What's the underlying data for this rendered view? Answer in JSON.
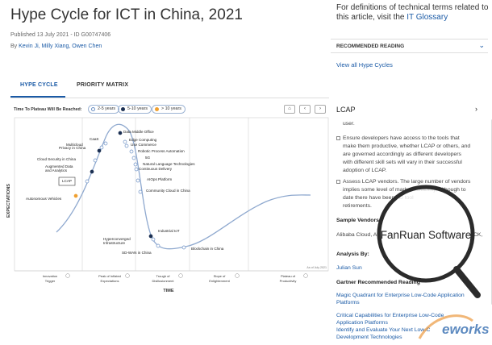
{
  "header": {
    "title": "Hype Cycle for ICT in China, 2021",
    "published": "Published 13 July 2021 - ID G00747406",
    "by_label": "By",
    "authors": "Kevin Ji, Milly Xiang, Owen Chen"
  },
  "tabs": [
    {
      "label": "HYPE CYCLE"
    },
    {
      "label": "PRIORITY MATRIX"
    }
  ],
  "legend": {
    "label": "Time To Plateau Will Be Reached:",
    "items": [
      {
        "label": "2-5 years",
        "color": "#ffffff",
        "border": "#6a8fc4"
      },
      {
        "label": "5-10 years",
        "color": "#1b2f52",
        "border": "#1b2f52"
      },
      {
        "label": "> 10 years",
        "color": "#f0a030",
        "border": "#f0a030"
      }
    ]
  },
  "controls": {
    "home": "⌂",
    "prev": "‹",
    "next": "›"
  },
  "chart": {
    "ylabel": "EXPECTATIONS",
    "xlabel": "TIME",
    "asof": "As of July 2021",
    "phases": [
      "Innovation Trigger",
      "Peak of Inflated Expectations",
      "Trough of Disillusionment",
      "Slope of Enlightenment",
      "Plateau of Productivity"
    ],
    "selected": "LCAP",
    "technologies": [
      {
        "name": "Data Middle Office",
        "plateau": "5-10 years"
      },
      {
        "name": "Edge Computing",
        "plateau": "2-5 years"
      },
      {
        "name": "Low-Code Application Platforms",
        "plateau": "2-5 years"
      },
      {
        "name": "Robotic Process Automation",
        "plateau": "2-5 years"
      },
      {
        "name": "5G",
        "plateau": "2-5 years"
      },
      {
        "name": "Natural Language Technologies",
        "plateau": "2-5 years"
      },
      {
        "name": "Continuous Delivery",
        "plateau": "2-5 years"
      },
      {
        "name": "AIOps Platform",
        "plateau": "2-5 years"
      },
      {
        "name": "Community Cloud in China",
        "plateau": "2-5 years"
      },
      {
        "name": "Industrial IoT",
        "plateau": "5-10 years"
      },
      {
        "name": "Hyperconverged Infrastructure",
        "plateau": "2-5 years"
      },
      {
        "name": "SD-WAN in China",
        "plateau": "2-5 years"
      },
      {
        "name": "Blockchain in China",
        "plateau": "2-5 years"
      },
      {
        "name": "CaaS",
        "plateau": "2-5 years"
      },
      {
        "name": "Multicloud",
        "plateau": "2-5 years"
      },
      {
        "name": "Privacy in China",
        "plateau": "5-10 years"
      },
      {
        "name": "Cloud Security in China",
        "plateau": "2-5 years"
      },
      {
        "name": "Augmented Data and Analytics",
        "plateau": "5-10 years"
      },
      {
        "name": "LCAP",
        "plateau": "2-5 years"
      },
      {
        "name": "Autonomous Vehicles",
        "plateau": "> 10 years"
      }
    ]
  },
  "sidebar": {
    "glossary_text": "For definitions of technical terms related to this article, visit the",
    "glossary_link": "IT Glossary",
    "recommended": "RECOMMENDED READING",
    "view_all": "View all Hype Cycles"
  },
  "panel": {
    "title": "LCAP",
    "close": "›",
    "lines": [
      {
        "text": "user.",
        "type": "text"
      },
      {
        "text": "Ensure developers have access to the tools that",
        "type": "bullet"
      },
      {
        "text": "make them productive, whether LCAP or others, and",
        "type": "text"
      },
      {
        "text": "are governed accordingly as different developers",
        "type": "text"
      },
      {
        "text": "with different skill sets will vary in their successful",
        "type": "text"
      },
      {
        "text": "adoption of LCAP.",
        "type": "text"
      },
      {
        "text": "Assess LCAP vendors. The large number of vendors",
        "type": "bullet"
      },
      {
        "text": "implies some level of market instability, although to",
        "type": "text"
      },
      {
        "text": "date there have been f              D tool",
        "type": "text"
      },
      {
        "text": "retirements.",
        "type": "text"
      }
    ],
    "sample_vendors_label": "Sample Vendors",
    "sample_vendors": "Alibaba Cloud, A",
    "sample_vendors_tail": "CK,",
    "analysis_label": "Analysis By:",
    "analyst": "Julian Sun",
    "gartner_label": "Gartner Recommended Reading",
    "links": [
      "Magic Quadrant for Enterprise Low-Code Application",
      "Platforms",
      "Critical Capabilities for Enterprise Low-Code",
      "Application Platforms",
      "Identify and Evaluate Your Next Low-C",
      "Development Technologies"
    ]
  },
  "watermarks": {
    "magnifier": "FanRuan Software",
    "logo": "eworks"
  }
}
